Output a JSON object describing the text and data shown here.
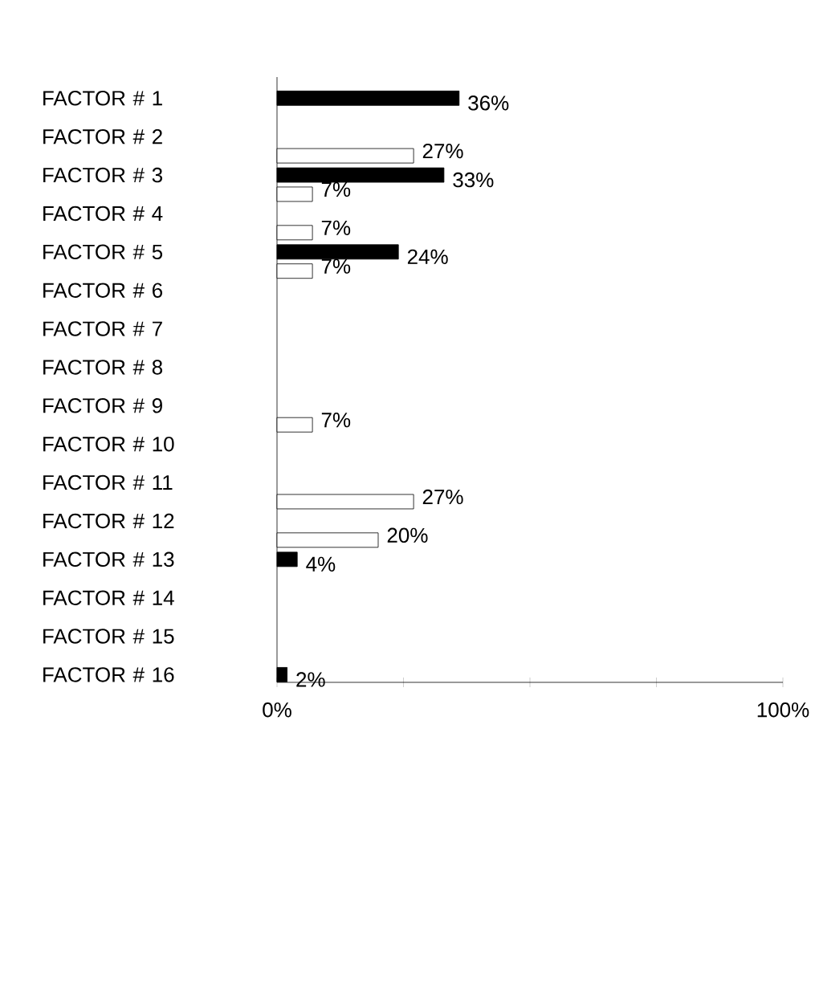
{
  "chart_data": {
    "type": "bar",
    "orientation": "horizontal",
    "categories": [
      "FACTOR # 1",
      "FACTOR # 2",
      "FACTOR # 3",
      "FACTOR # 4",
      "FACTOR # 5",
      "FACTOR # 6",
      "FACTOR # 7",
      "FACTOR # 8",
      "FACTOR # 9",
      "FACTOR # 10",
      "FACTOR # 11",
      "FACTOR # 12",
      "FACTOR # 13",
      "FACTOR # 14",
      "FACTOR # 15",
      "FACTOR # 16"
    ],
    "series": [
      {
        "color": "#ffffff",
        "values": [
          null,
          null,
          27,
          7,
          7,
          7,
          null,
          null,
          null,
          7,
          null,
          27,
          20,
          null,
          null,
          null
        ],
        "value_labels": [
          null,
          null,
          "27%",
          "7%",
          "7%",
          "7%",
          null,
          null,
          null,
          "7%",
          null,
          "27%",
          "20%",
          null,
          null,
          null
        ]
      },
      {
        "color": "#000000",
        "values": [
          36,
          null,
          33,
          null,
          24,
          null,
          null,
          null,
          null,
          null,
          null,
          null,
          4,
          null,
          null,
          2
        ],
        "value_labels": [
          "36%",
          null,
          "33%",
          null,
          "24%",
          null,
          null,
          null,
          null,
          null,
          null,
          null,
          "4%",
          null,
          null,
          "2%"
        ]
      }
    ],
    "xlim": [
      0,
      100
    ],
    "xticks": [
      {
        "value": 0,
        "label": "0%"
      },
      {
        "value": 25,
        "label": null
      },
      {
        "value": 50,
        "label": null
      },
      {
        "value": 75,
        "label": null
      },
      {
        "value": 100,
        "label": "100%"
      }
    ],
    "grid": false
  }
}
